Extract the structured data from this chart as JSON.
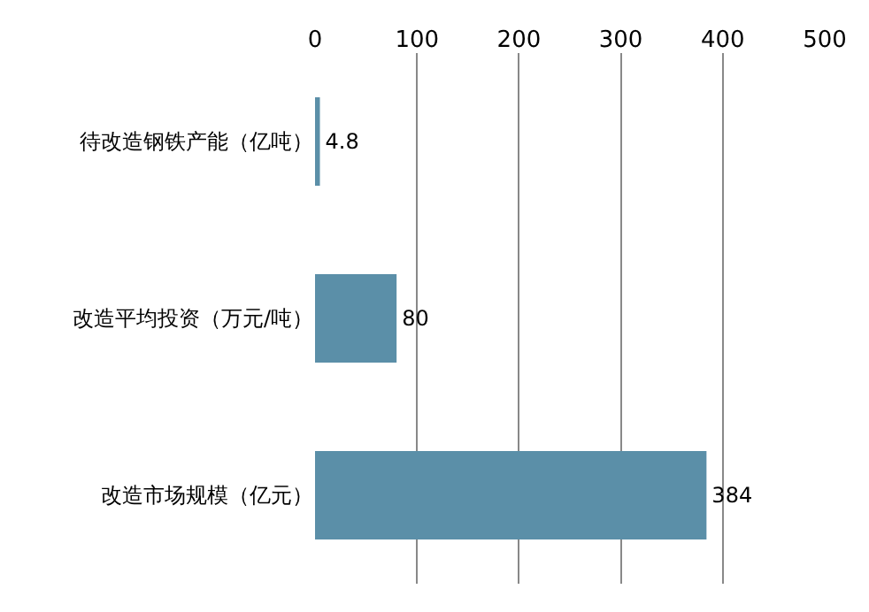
{
  "chart_data": {
    "type": "bar",
    "orientation": "horizontal",
    "categories": [
      "待改造钢铁产能（亿吨）",
      "改造平均投资（万元/吨）",
      "改造市场规模（亿元）"
    ],
    "values": [
      4.8,
      80,
      384
    ],
    "color": "#5b8fa8",
    "xlim": [
      0,
      500
    ],
    "xticks": [
      0,
      100,
      200,
      300,
      400,
      500
    ],
    "grid": "x",
    "data_labels": true
  }
}
